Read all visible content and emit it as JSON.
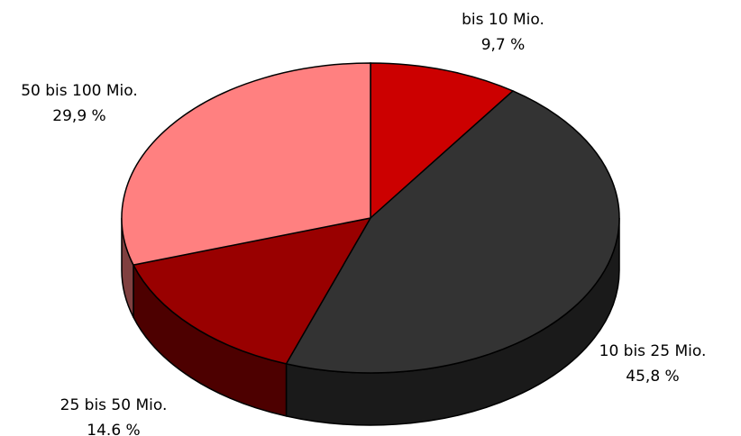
{
  "chart_data": {
    "type": "pie",
    "categories": [
      "bis 10 Mio.",
      "10 bis 25 Mio.",
      "25 bis 50 Mio.",
      "50 bis 100 Mio."
    ],
    "values": [
      9.7,
      45.8,
      14.6,
      29.9
    ],
    "value_labels": [
      "9,7 %",
      "45,8 %",
      "14.6 %",
      "29,9 %"
    ],
    "colors": [
      "#cc0000",
      "#333333",
      "#990000",
      "#ff8080"
    ]
  }
}
